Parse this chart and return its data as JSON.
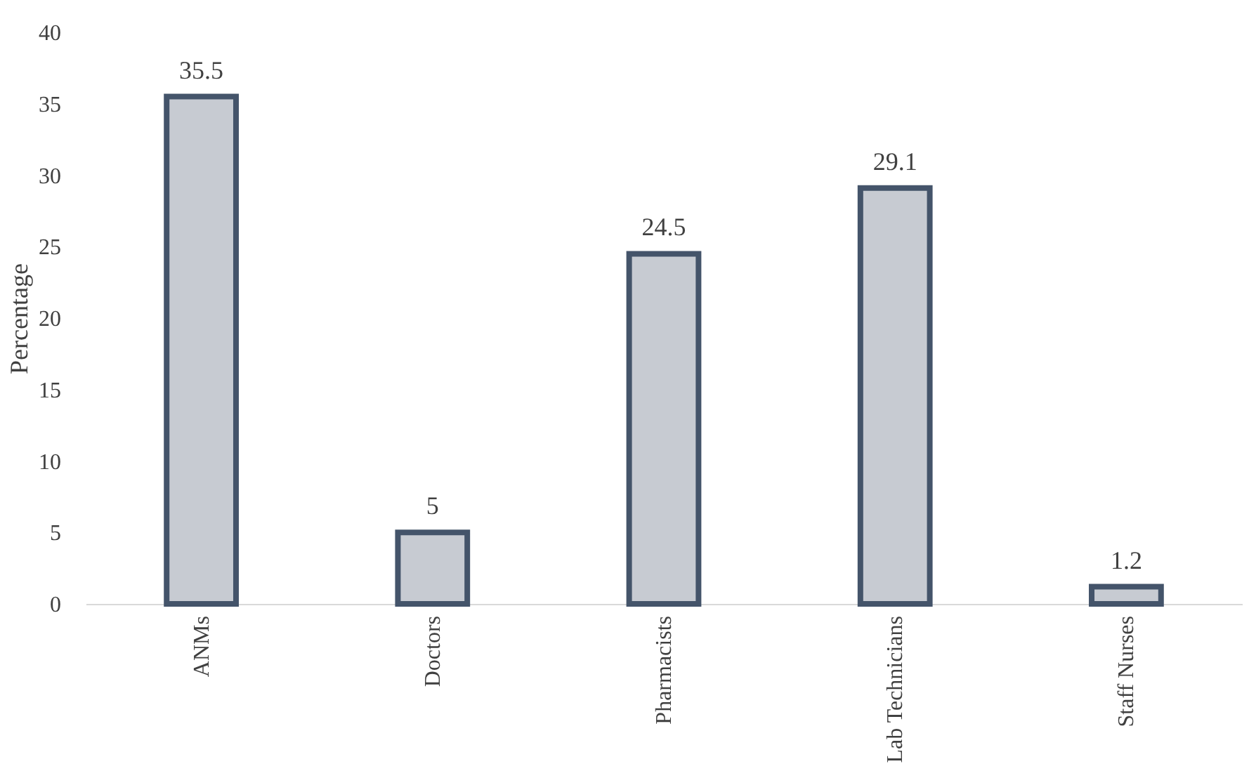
{
  "chart_data": {
    "type": "bar",
    "ylabel": "Percentage",
    "categories": [
      "ANMs",
      "Doctors",
      "Pharmacists",
      "Lab Technicians",
      "Staff Nurses"
    ],
    "values": [
      35.5,
      5,
      24.5,
      29.1,
      1.2
    ],
    "color": "#44546a",
    "ylim": [
      0,
      40
    ],
    "yticks": [
      0,
      5,
      10,
      15,
      20,
      25,
      30,
      35,
      40
    ],
    "grid": false,
    "data_labels": true
  }
}
